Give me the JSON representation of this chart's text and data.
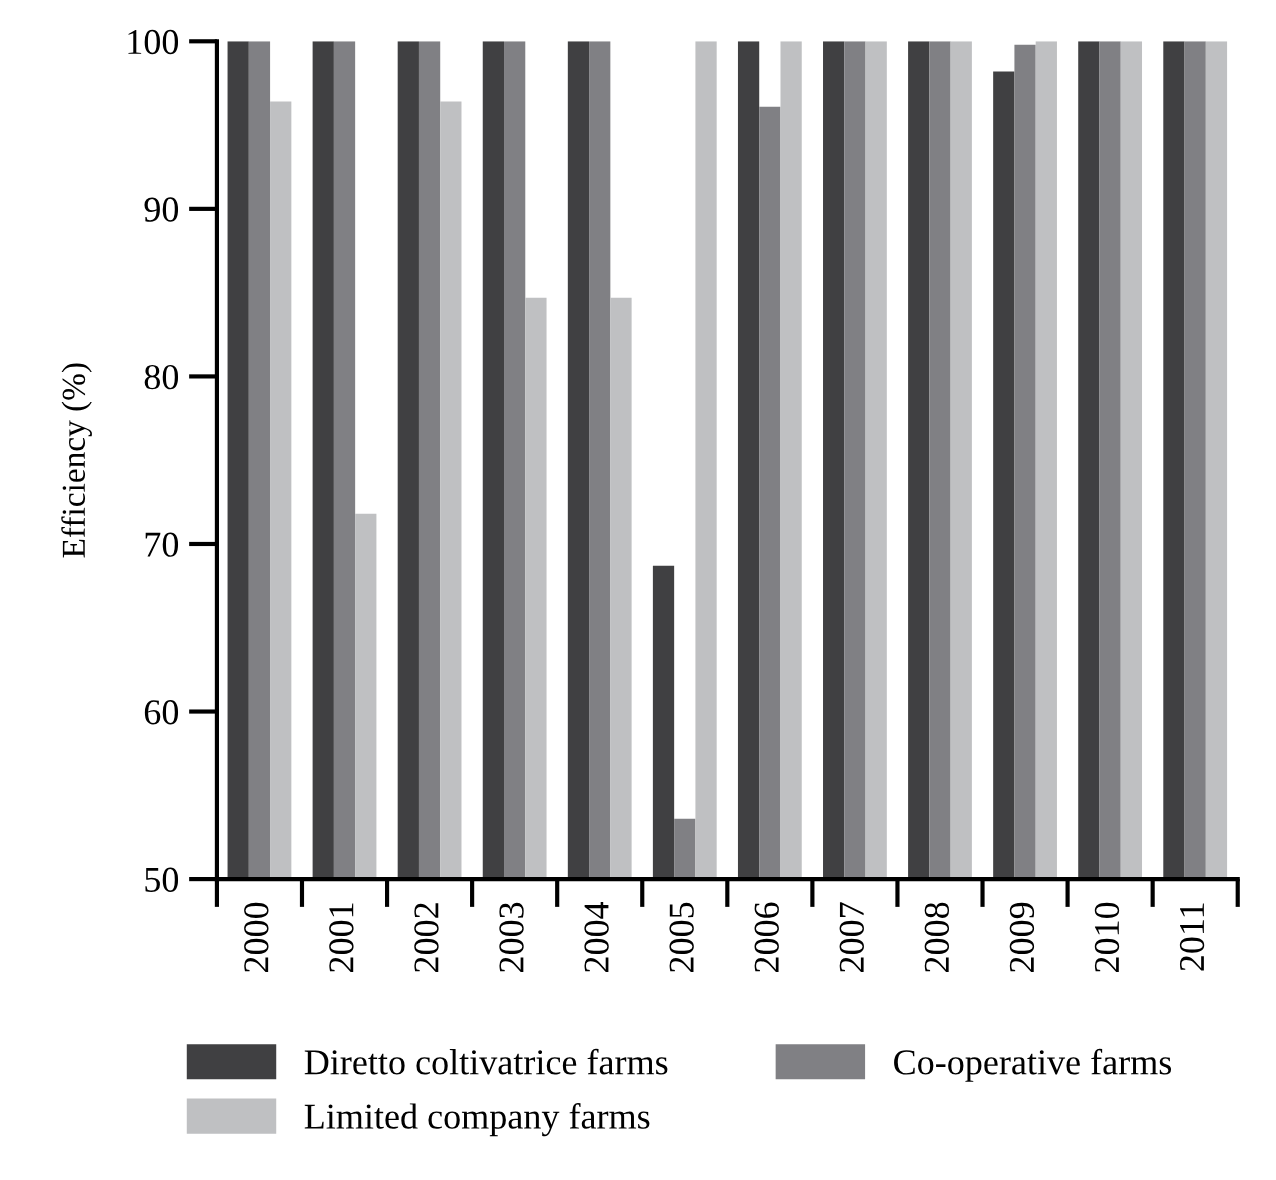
{
  "chart_data": {
    "type": "bar",
    "ylabel": "Efficiency (%)",
    "categories": [
      "2000",
      "2001",
      "2002",
      "2003",
      "2004",
      "2005",
      "2006",
      "2007",
      "2008",
      "2009",
      "2010",
      "2011"
    ],
    "series": [
      {
        "name": "Diretto coltivatrice farms",
        "color": "#404042",
        "values": [
          100,
          100,
          100,
          100,
          100,
          68.7,
          100,
          100,
          100,
          98.2,
          100,
          100
        ]
      },
      {
        "name": "Co-operative farms",
        "color": "#808084",
        "values": [
          100,
          100,
          100,
          100,
          100,
          53.6,
          96.1,
          100,
          100,
          99.8,
          100,
          100
        ]
      },
      {
        "name": "Limited company farms",
        "color": "#bfc0c2",
        "values": [
          96.4,
          71.8,
          96.4,
          84.7,
          84.7,
          100,
          100,
          100,
          100,
          100,
          100,
          100
        ]
      }
    ],
    "ylim": [
      50,
      100
    ],
    "yticks": [
      50,
      60,
      70,
      80,
      90,
      100
    ],
    "grid": false,
    "legend": "bottom"
  }
}
